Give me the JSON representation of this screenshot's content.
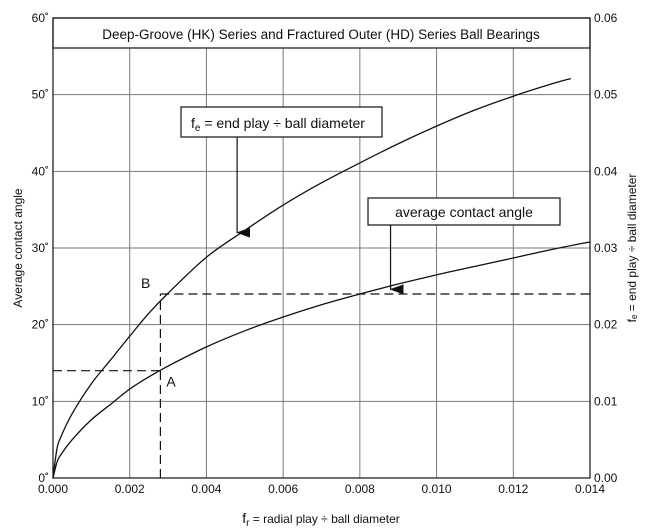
{
  "chart_data": {
    "type": "line",
    "title": "Deep-Groove (HK) Series and Fractured Outer (HD) Series Ball Bearings",
    "xlabel": {
      "main": "f",
      "sub": "r",
      "rest": " = radial play ÷ ball diameter"
    },
    "ylabel_left": "Average contact angle",
    "ylabel_right": "fₑ = end play ÷ ball diameter",
    "xlim": [
      0,
      0.014
    ],
    "ylim_left": [
      0,
      60
    ],
    "ylim_right": [
      0,
      0.06
    ],
    "grid": true,
    "x_ticks": [
      {
        "value": 0.0,
        "label": "0.000"
      },
      {
        "value": 0.002,
        "label": "0.002"
      },
      {
        "value": 0.004,
        "label": "0.004"
      },
      {
        "value": 0.006,
        "label": "0.006"
      },
      {
        "value": 0.008,
        "label": "0.008"
      },
      {
        "value": 0.01,
        "label": "0.010"
      },
      {
        "value": 0.012,
        "label": "0.012"
      },
      {
        "value": 0.014,
        "label": "0.014"
      }
    ],
    "y_ticks_left": [
      {
        "value": 0,
        "label": "0˚"
      },
      {
        "value": 10,
        "label": "10˚"
      },
      {
        "value": 20,
        "label": "20˚"
      },
      {
        "value": 30,
        "label": "30˚"
      },
      {
        "value": 40,
        "label": "40˚"
      },
      {
        "value": 50,
        "label": "50˚"
      },
      {
        "value": 60,
        "label": "60˚"
      }
    ],
    "y_ticks_right": [
      {
        "value": 0.0,
        "label": "0.00"
      },
      {
        "value": 0.01,
        "label": "0.01"
      },
      {
        "value": 0.02,
        "label": "0.02"
      },
      {
        "value": 0.03,
        "label": "0.03"
      },
      {
        "value": 0.04,
        "label": "0.04"
      },
      {
        "value": 0.05,
        "label": "0.05"
      },
      {
        "value": 0.06,
        "label": "0.06"
      }
    ],
    "series": [
      {
        "key": "end-play",
        "x": [
          0,
          0.0001,
          0.0002,
          0.0005,
          0.001,
          0.0015,
          0.002,
          0.0025,
          0.003,
          0.004,
          0.005,
          0.006,
          0.007,
          0.008,
          0.009,
          0.01,
          0.011,
          0.012,
          0.013,
          0.0135
        ],
        "y": [
          0,
          3.7,
          5.3,
          8.4,
          12.3,
          15.4,
          18.5,
          21.5,
          24.1,
          28.8,
          32.3,
          35.6,
          38.5,
          41.1,
          43.6,
          45.9,
          48.0,
          49.8,
          51.4,
          52.1
        ]
      },
      {
        "key": "contact-angle",
        "x": [
          0,
          0.0001,
          0.0002,
          0.0005,
          0.001,
          0.0015,
          0.002,
          0.0025,
          0.003,
          0.004,
          0.005,
          0.006,
          0.007,
          0.008,
          0.009,
          0.01,
          0.011,
          0.012,
          0.013,
          0.014
        ],
        "y": [
          0,
          2.0,
          3.0,
          5.0,
          7.6,
          9.6,
          11.6,
          13.2,
          14.6,
          17.1,
          19.2,
          21.0,
          22.6,
          24.0,
          25.3,
          26.5,
          27.6,
          28.7,
          29.8,
          30.8
        ]
      }
    ],
    "reference_lines": [
      {
        "x": 0.0028,
        "y_from": 0,
        "y_to": 24
      },
      {
        "y": 14,
        "x_from": 0,
        "x_to": 0.0028
      },
      {
        "y": 24,
        "x_from": 0.0028,
        "x_to": 0.014
      }
    ],
    "points": [
      {
        "label": "A",
        "x": 0.0028,
        "y": 14
      },
      {
        "label": "B",
        "x": 0.0028,
        "y": 24
      }
    ],
    "callouts": [
      {
        "main": "f",
        "sub": "e",
        "rest": " = end play ÷ ball diameter",
        "target_x": 0.0048,
        "target_y": 32
      },
      {
        "text": "average contact angle",
        "target_x": 0.0088,
        "target_y": 24.6
      }
    ]
  }
}
